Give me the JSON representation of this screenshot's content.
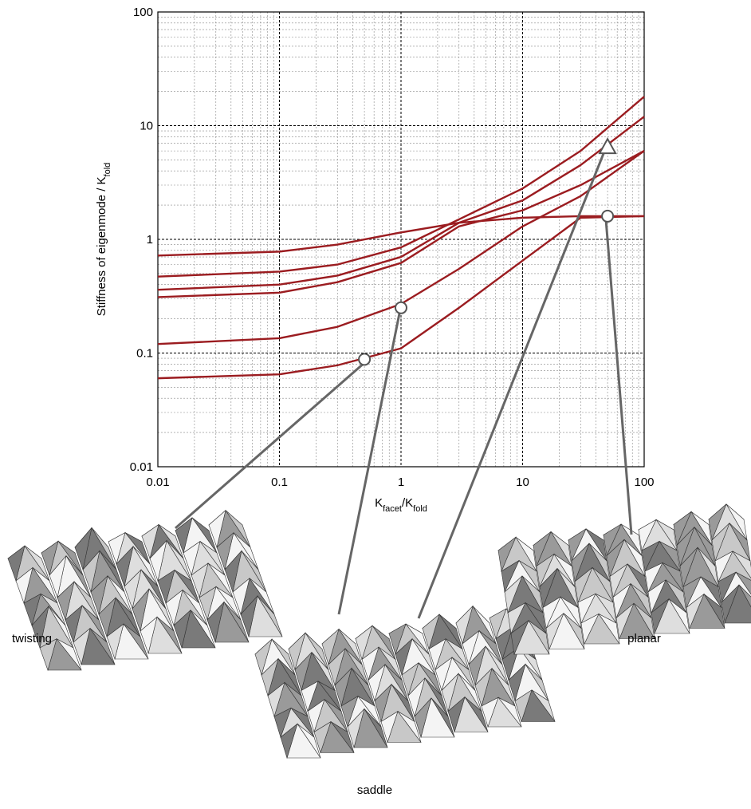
{
  "chart_data": {
    "type": "line",
    "xlabel": [
      {
        "text": "K"
      },
      {
        "text": "facet",
        "sub": true
      },
      {
        "text": "/K"
      },
      {
        "text": "fold",
        "sub": true
      }
    ],
    "ylabel": [
      {
        "text": "Stiffness of eigenmode / K"
      },
      {
        "text": "fold",
        "sub": true
      }
    ],
    "xscale": "log",
    "yscale": "log",
    "grid": true,
    "xlim": [
      0.01,
      100
    ],
    "ylim": [
      0.01,
      100
    ],
    "xticks": [
      0.01,
      0.1,
      1,
      10,
      100
    ],
    "yticks": [
      0.01,
      0.1,
      1,
      10,
      100
    ],
    "x": [
      0.01,
      0.1,
      0.3,
      1,
      3,
      10,
      30,
      100
    ],
    "series": [
      {
        "color": "#9b1c20",
        "values": [
          0.72,
          0.78,
          0.9,
          1.15,
          1.4,
          1.55,
          1.6,
          1.6
        ]
      },
      {
        "color": "#9b1c20",
        "values": [
          0.47,
          0.52,
          0.6,
          0.85,
          1.5,
          2.8,
          6,
          18
        ]
      },
      {
        "color": "#9b1c20",
        "values": [
          0.36,
          0.4,
          0.48,
          0.7,
          1.4,
          2.2,
          4.5,
          12
        ]
      },
      {
        "color": "#9b1c20",
        "values": [
          0.31,
          0.34,
          0.42,
          0.62,
          1.3,
          1.8,
          3,
          6
        ]
      },
      {
        "color": "#9b1c20",
        "values": [
          0.12,
          0.135,
          0.17,
          0.27,
          0.55,
          1.3,
          2.4,
          6
        ]
      },
      {
        "color": "#9b1c20",
        "values": [
          0.06,
          0.065,
          0.078,
          0.11,
          0.25,
          0.65,
          1.55,
          1.6
        ]
      }
    ],
    "annotations": [
      {
        "label": "twisting",
        "x": 0.5,
        "y": 0.088,
        "marker": "circle"
      },
      {
        "label": "saddle",
        "x": 1,
        "y": 0.25,
        "marker": "circle"
      },
      {
        "x": 50,
        "y": 6.5,
        "marker": "triangle"
      },
      {
        "label": "planar",
        "x": 50,
        "y": 1.6,
        "marker": "circle"
      }
    ]
  }
}
